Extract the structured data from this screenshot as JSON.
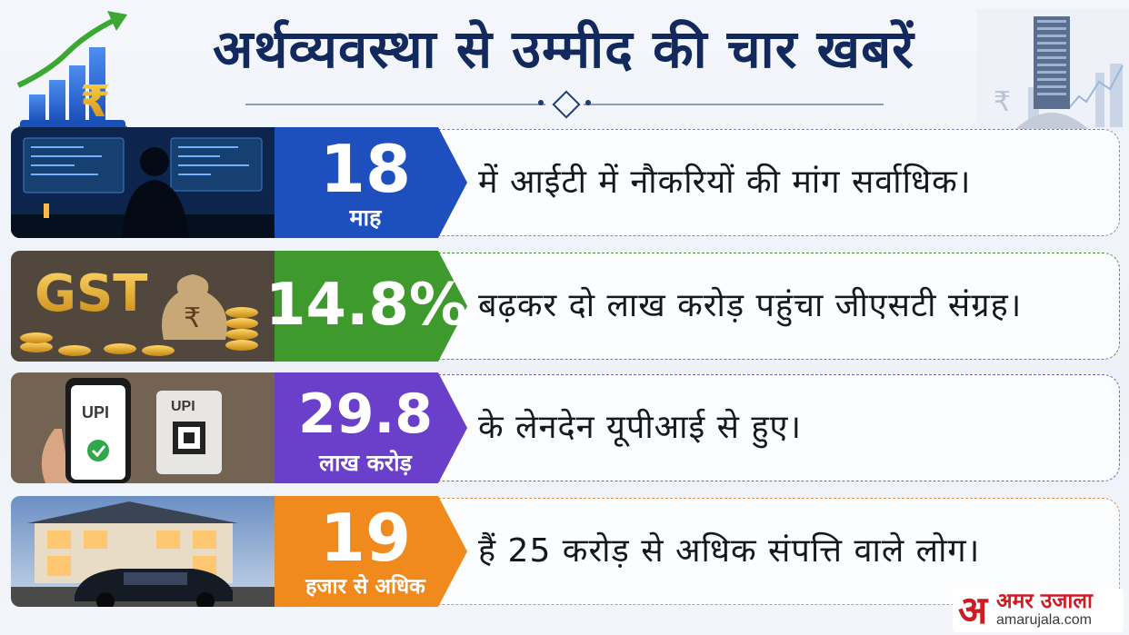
{
  "title": "अर्थव्यवस्था से उम्मीद की चार खबरें",
  "rows": [
    {
      "image": "it-workstation-photo",
      "stat": "18",
      "unit": "माह",
      "text": "में आईटी में नौकरियों की मांग सर्वाधिक।",
      "color": "#1d4fbf"
    },
    {
      "image": "gst-money-bag-photo",
      "image_text": "GST",
      "stat": "14.8%",
      "unit": "",
      "text": "बढ़कर दो लाख करोड़ पहुंचा जीएसटी संग्रह।",
      "color": "#3e9a2d"
    },
    {
      "image": "upi-phone-photo",
      "image_text": "UPI",
      "stat": "29.8",
      "unit": "लाख करोड़",
      "text": "के लेनदेन यूपीआई से हुए।",
      "color": "#6a3fc9"
    },
    {
      "image": "mansion-car-photo",
      "stat": "19",
      "unit": "हजार से अधिक",
      "text": "हैं 25 करोड़ से अधिक संपत्ति वाले लोग।",
      "color": "#f08a1d"
    }
  ],
  "brand": {
    "name": "अमर उजाला",
    "glyph": "अ",
    "url": "amarujala.com"
  }
}
